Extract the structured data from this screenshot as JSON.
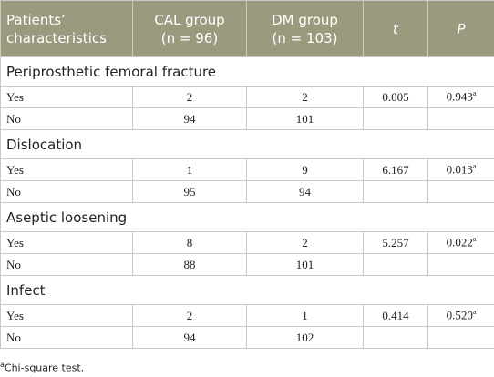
{
  "table": {
    "header": [
      [
        "Patients’",
        "characteristics"
      ],
      [
        "CAL group",
        "(n = 96)"
      ],
      [
        "DM group",
        "(n = 103)"
      ],
      [
        "t"
      ],
      [
        "P"
      ]
    ],
    "sections": [
      {
        "title": "Periprosthetic femoral fracture",
        "rows": [
          {
            "label": "Yes",
            "cal": "2",
            "dm": "2",
            "t": "0.005",
            "p": "0.943",
            "p_note": "a"
          },
          {
            "label": "No",
            "cal": "94",
            "dm": "101"
          }
        ]
      },
      {
        "title": "Dislocation",
        "rows": [
          {
            "label": "Yes",
            "cal": "1",
            "dm": "9",
            "t": "6.167",
            "p": "0.013",
            "p_note": "a"
          },
          {
            "label": "No",
            "cal": "95",
            "dm": "94"
          }
        ]
      },
      {
        "title": "Aseptic loosening",
        "rows": [
          {
            "label": "Yes",
            "cal": "8",
            "dm": "2",
            "t": "5.257",
            "p": "0.022",
            "p_note": "a"
          },
          {
            "label": "No",
            "cal": "88",
            "dm": "101"
          }
        ]
      },
      {
        "title": "Infect",
        "rows": [
          {
            "label": "Yes",
            "cal": "2",
            "dm": "1",
            "t": "0.414",
            "p": "0.520",
            "p_note": "a"
          },
          {
            "label": "No",
            "cal": "94",
            "dm": "102"
          }
        ]
      }
    ],
    "footnote": {
      "mark": "a",
      "text": "Chi-square test."
    }
  }
}
